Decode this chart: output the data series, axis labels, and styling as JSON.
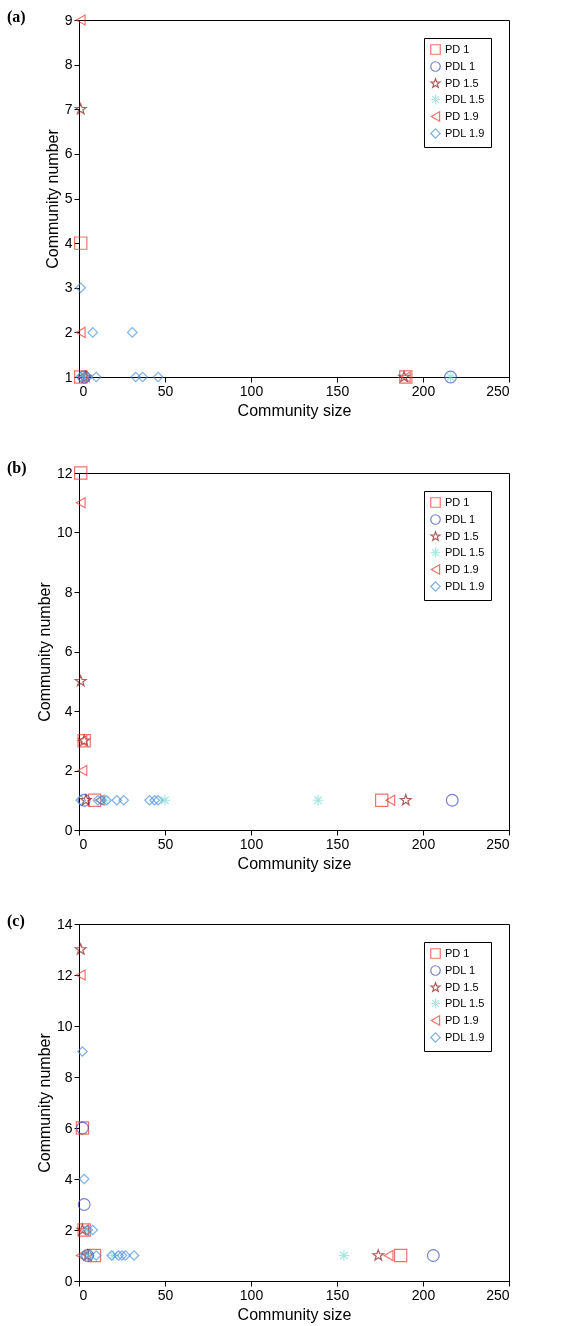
{
  "chart_data": [
    {
      "type": "scatter",
      "title": "(a)",
      "xlabel": "Community size",
      "ylabel": "Community number",
      "xlim": [
        0,
        250
      ],
      "xticks": [
        0,
        50,
        100,
        150,
        200,
        250
      ],
      "ylim": [
        1,
        9
      ],
      "yticks": [
        1,
        2,
        3,
        4,
        5,
        6,
        7,
        8,
        9
      ],
      "grid": false,
      "legend": "top right",
      "series": [
        {
          "name": "PD 1",
          "color": "#e8392c",
          "marker": "square",
          "x": [
            1,
            1,
            190
          ],
          "values": [
            4,
            1,
            1
          ]
        },
        {
          "name": "PDL 1",
          "color": "#3a4fbf",
          "marker": "circle",
          "x": [
            3,
            216
          ],
          "values": [
            1,
            1
          ]
        },
        {
          "name": "PD 1.5",
          "color": "#8b1a1a",
          "marker": "star",
          "x": [
            1,
            4,
            189
          ],
          "values": [
            7,
            1,
            1
          ]
        },
        {
          "name": "PDL 1.5",
          "color": "#7fe0d8",
          "marker": "cross",
          "x": [
            3,
            216
          ],
          "values": [
            1,
            1
          ]
        },
        {
          "name": "PD 1.9",
          "color": "#e8392c",
          "marker": "triangle",
          "x": [
            1,
            1,
            2,
            190
          ],
          "values": [
            9,
            2,
            1,
            1
          ]
        },
        {
          "name": "PDL 1.9",
          "color": "#4a90d9",
          "marker": "diamond",
          "x": [
            1,
            8,
            31,
            1,
            3,
            5,
            10,
            33,
            37,
            46
          ],
          "values": [
            3,
            2,
            2,
            1,
            1,
            1,
            1,
            1,
            1,
            1
          ]
        }
      ]
    },
    {
      "type": "scatter",
      "title": "(b)",
      "xlabel": "Community size",
      "ylabel": "Community number",
      "xlim": [
        0,
        250
      ],
      "xticks": [
        0,
        50,
        100,
        150,
        200,
        250
      ],
      "ylim": [
        0,
        12
      ],
      "yticks": [
        0,
        2,
        4,
        6,
        8,
        10,
        12
      ],
      "grid": false,
      "legend": "top right",
      "series": [
        {
          "name": "PD 1",
          "color": "#e8392c",
          "marker": "square",
          "x": [
            1,
            3,
            9,
            176
          ],
          "values": [
            12,
            3,
            1,
            1
          ]
        },
        {
          "name": "PDL 1",
          "color": "#3a4fbf",
          "marker": "circle",
          "x": [
            3,
            217
          ],
          "values": [
            1,
            1
          ]
        },
        {
          "name": "PD 1.5",
          "color": "#8b1a1a",
          "marker": "star",
          "x": [
            1,
            3,
            4,
            190
          ],
          "values": [
            5,
            3,
            1,
            1
          ]
        },
        {
          "name": "PDL 1.5",
          "color": "#7fe0d8",
          "marker": "cross",
          "x": [
            15,
            50,
            139
          ],
          "values": [
            1,
            1,
            1
          ]
        },
        {
          "name": "PD 1.9",
          "color": "#e8392c",
          "marker": "triangle",
          "x": [
            1,
            2,
            2,
            12,
            181
          ],
          "values": [
            11,
            3,
            2,
            1,
            1
          ]
        },
        {
          "name": "PDL 1.9",
          "color": "#4a90d9",
          "marker": "diamond",
          "x": [
            1,
            11,
            13,
            16,
            22,
            26,
            41,
            44,
            46
          ],
          "values": [
            1,
            1,
            1,
            1,
            1,
            1,
            1,
            1,
            1
          ]
        }
      ]
    },
    {
      "type": "scatter",
      "title": "(c)",
      "xlabel": "Community size",
      "ylabel": "Community number",
      "xlim": [
        0,
        250
      ],
      "xticks": [
        0,
        50,
        100,
        150,
        200,
        250
      ],
      "ylim": [
        0,
        14
      ],
      "yticks": [
        0,
        2,
        4,
        6,
        8,
        10,
        12,
        14
      ],
      "grid": false,
      "legend": "top right",
      "series": [
        {
          "name": "PD 1",
          "color": "#e8392c",
          "marker": "square",
          "x": [
            2,
            3,
            9,
            187
          ],
          "values": [
            6,
            2,
            1,
            1
          ]
        },
        {
          "name": "PDL 1",
          "color": "#3a4fbf",
          "marker": "circle",
          "x": [
            2,
            3,
            5,
            206
          ],
          "values": [
            6,
            3,
            1,
            1
          ]
        },
        {
          "name": "PD 1.5",
          "color": "#8b1a1a",
          "marker": "star",
          "x": [
            1,
            2,
            5,
            174
          ],
          "values": [
            13,
            2,
            1,
            1
          ]
        },
        {
          "name": "PDL 1.5",
          "color": "#7fe0d8",
          "marker": "cross",
          "x": [
            5,
            5,
            20,
            154
          ],
          "values": [
            2,
            1,
            1,
            1
          ]
        },
        {
          "name": "PD 1.9",
          "color": "#e8392c",
          "marker": "triangle",
          "x": [
            1,
            1,
            3,
            180
          ],
          "values": [
            12,
            1,
            2,
            1
          ]
        },
        {
          "name": "PDL 1.9",
          "color": "#4a90d9",
          "marker": "diamond",
          "x": [
            2,
            3,
            5,
            8,
            3,
            6,
            10,
            19,
            23,
            25,
            27,
            32
          ],
          "values": [
            9,
            4,
            2,
            2,
            1,
            1,
            1,
            1,
            1,
            1,
            1,
            1
          ]
        }
      ]
    }
  ]
}
